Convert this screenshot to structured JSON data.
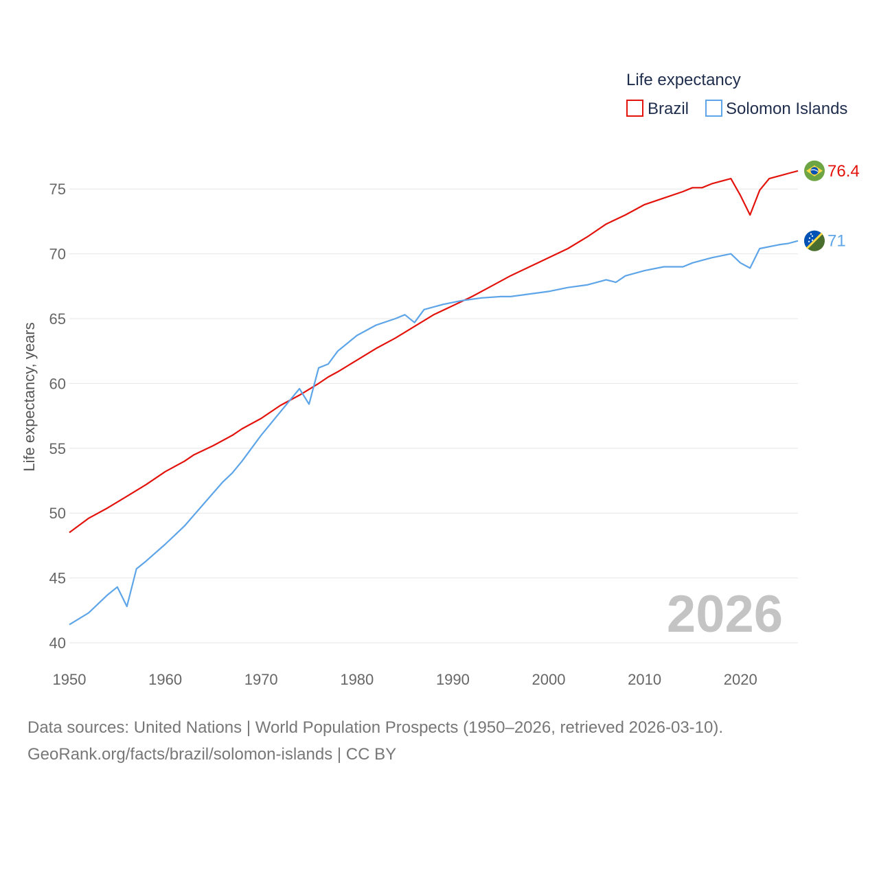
{
  "chart_data": {
    "type": "line",
    "title": "",
    "legend": {
      "title": "Life expectancy",
      "placement": "top-right"
    },
    "ylabel": "Life expectancy, years",
    "xlabel": "",
    "ylim": [
      40,
      77.5
    ],
    "xlim": [
      1950,
      2026
    ],
    "yticks": [
      40,
      45,
      50,
      55,
      60,
      65,
      70,
      75
    ],
    "xticks": [
      1950,
      1960,
      1970,
      1980,
      1990,
      2000,
      2010,
      2020
    ],
    "grid": true,
    "watermark_year": "2026",
    "series": [
      {
        "name": "Brazil",
        "color": "#e3120b",
        "end_label": "76.4",
        "flag": "brazil-flag-icon",
        "points": [
          [
            1950,
            48.5
          ],
          [
            1952,
            49.6
          ],
          [
            1954,
            50.4
          ],
          [
            1956,
            51.3
          ],
          [
            1958,
            52.2
          ],
          [
            1960,
            53.2
          ],
          [
            1962,
            54.0
          ],
          [
            1963,
            54.5
          ],
          [
            1965,
            55.2
          ],
          [
            1967,
            56.0
          ],
          [
            1968,
            56.5
          ],
          [
            1970,
            57.3
          ],
          [
            1972,
            58.3
          ],
          [
            1974,
            59.1
          ],
          [
            1976,
            60.0
          ],
          [
            1977,
            60.5
          ],
          [
            1978,
            60.9
          ],
          [
            1980,
            61.8
          ],
          [
            1982,
            62.7
          ],
          [
            1984,
            63.5
          ],
          [
            1986,
            64.4
          ],
          [
            1988,
            65.3
          ],
          [
            1990,
            66.0
          ],
          [
            1992,
            66.7
          ],
          [
            1994,
            67.5
          ],
          [
            1996,
            68.3
          ],
          [
            1998,
            69.0
          ],
          [
            2000,
            69.7
          ],
          [
            2002,
            70.4
          ],
          [
            2004,
            71.3
          ],
          [
            2006,
            72.3
          ],
          [
            2008,
            73.0
          ],
          [
            2010,
            73.8
          ],
          [
            2012,
            74.3
          ],
          [
            2014,
            74.8
          ],
          [
            2015,
            75.1
          ],
          [
            2016,
            75.1
          ],
          [
            2017,
            75.4
          ],
          [
            2019,
            75.8
          ],
          [
            2020,
            74.5
          ],
          [
            2021,
            73.0
          ],
          [
            2022,
            74.9
          ],
          [
            2023,
            75.8
          ],
          [
            2024,
            76.0
          ],
          [
            2025,
            76.2
          ],
          [
            2026,
            76.4
          ]
        ]
      },
      {
        "name": "Solomon Islands",
        "color": "#5da5e8",
        "end_label": "71",
        "flag": "solomon-islands-flag-icon",
        "points": [
          [
            1950,
            41.4
          ],
          [
            1952,
            42.3
          ],
          [
            1954,
            43.7
          ],
          [
            1955,
            44.3
          ],
          [
            1956,
            42.8
          ],
          [
            1957,
            45.7
          ],
          [
            1958,
            46.3
          ],
          [
            1960,
            47.6
          ],
          [
            1962,
            49.0
          ],
          [
            1964,
            50.7
          ],
          [
            1966,
            52.4
          ],
          [
            1967,
            53.1
          ],
          [
            1968,
            54.0
          ],
          [
            1970,
            56.0
          ],
          [
            1972,
            57.8
          ],
          [
            1974,
            59.6
          ],
          [
            1975,
            58.4
          ],
          [
            1976,
            61.2
          ],
          [
            1977,
            61.5
          ],
          [
            1978,
            62.5
          ],
          [
            1980,
            63.7
          ],
          [
            1982,
            64.5
          ],
          [
            1984,
            65.0
          ],
          [
            1985,
            65.3
          ],
          [
            1986,
            64.7
          ],
          [
            1987,
            65.7
          ],
          [
            1989,
            66.1
          ],
          [
            1991,
            66.4
          ],
          [
            1993,
            66.6
          ],
          [
            1995,
            66.7
          ],
          [
            1996,
            66.7
          ],
          [
            1998,
            66.9
          ],
          [
            2000,
            67.1
          ],
          [
            2002,
            67.4
          ],
          [
            2004,
            67.6
          ],
          [
            2006,
            68.0
          ],
          [
            2007,
            67.8
          ],
          [
            2008,
            68.3
          ],
          [
            2010,
            68.7
          ],
          [
            2012,
            69.0
          ],
          [
            2014,
            69.0
          ],
          [
            2015,
            69.3
          ],
          [
            2017,
            69.7
          ],
          [
            2019,
            70.0
          ],
          [
            2020,
            69.3
          ],
          [
            2021,
            68.9
          ],
          [
            2022,
            70.4
          ],
          [
            2024,
            70.7
          ],
          [
            2025,
            70.8
          ],
          [
            2026,
            71.0
          ]
        ]
      }
    ]
  },
  "footer": {
    "line1": "Data sources: United Nations | World Population Prospects (1950–2026, retrieved 2026-03-10).",
    "line2": "GeoRank.org/facts/brazil/solomon-islands | CC BY"
  }
}
